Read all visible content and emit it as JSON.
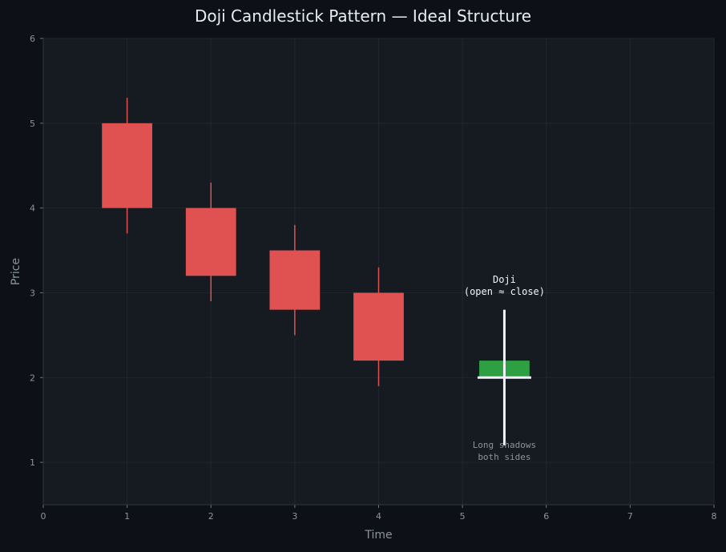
{
  "chart_data": {
    "type": "candlestick",
    "title": "Doji Candlestick Pattern — Ideal Structure",
    "xlabel": "Time",
    "ylabel": "Price",
    "xlim": [
      0,
      8
    ],
    "ylim": [
      0.5,
      6
    ],
    "xticks": [
      "0",
      "1",
      "2",
      "3",
      "4",
      "5",
      "6",
      "7",
      "8"
    ],
    "yticks": [
      "1",
      "2",
      "3",
      "4",
      "5",
      "6"
    ],
    "grid": true,
    "colors": {
      "background": "#0d1117",
      "plot_background": "#161b22",
      "grid": "#21262d",
      "bearish": "#e05252",
      "doji_body": "#2ea043",
      "doji_line": "#f0f6fc"
    },
    "candles": [
      {
        "x": 1,
        "open": 5.0,
        "high": 5.3,
        "low": 3.7,
        "close": 4.0
      },
      {
        "x": 2,
        "open": 4.0,
        "high": 4.3,
        "low": 2.9,
        "close": 3.2
      },
      {
        "x": 3,
        "open": 3.5,
        "high": 3.8,
        "low": 2.5,
        "close": 2.8
      },
      {
        "x": 4,
        "open": 3.0,
        "high": 3.3,
        "low": 1.9,
        "close": 2.2
      }
    ],
    "doji": {
      "x": 5.5,
      "open": 2.0,
      "close": 2.2,
      "high": 2.8,
      "low": 1.2
    },
    "annotations": {
      "doji_label_line1": "Doji",
      "doji_label_line2": "(open ≈ close)",
      "shadow_label_line1": "Long shadows",
      "shadow_label_line2": "both sides"
    }
  }
}
